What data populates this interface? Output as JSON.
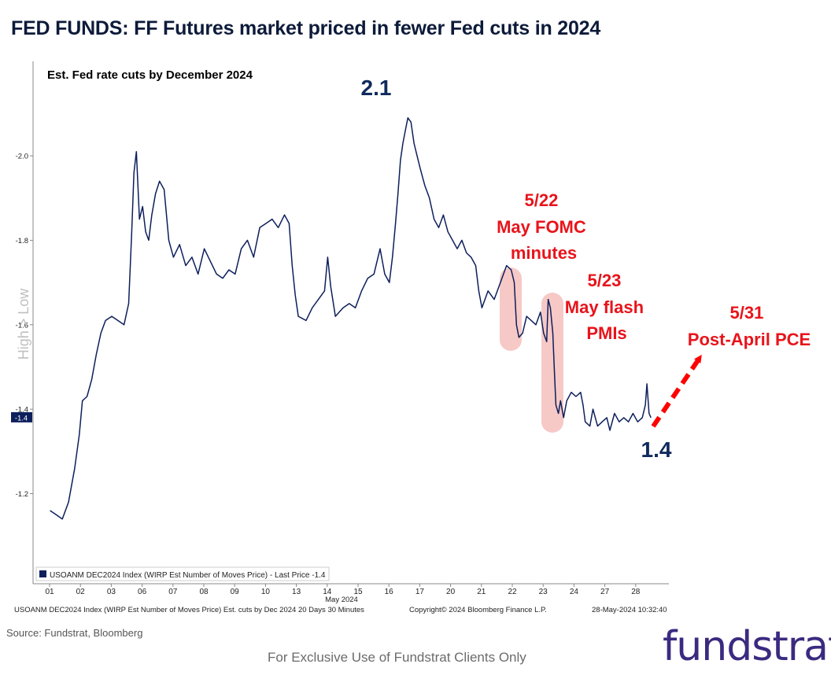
{
  "title": "FED FUNDS: FF Futures market priced in fewer Fed cuts in 2024",
  "footer": {
    "source": "Source: Fundstrat, Bloomberg",
    "exclusive": "For Exclusive Use of Fundstrat Clients Only",
    "logo_text": "fundstrat"
  },
  "chart_data": {
    "type": "line",
    "subtitle": "Est. Fed rate cuts by December 2024",
    "ylabel": "High > Low",
    "y_inverted": true,
    "ylim": [
      1.05,
      2.22
    ],
    "y_ticks": [
      "-2.0",
      "-1.8",
      "-1.6",
      "-1.4",
      "-1.2"
    ],
    "y_tick_values": [
      2.0,
      1.8,
      1.6,
      1.4,
      1.2
    ],
    "last_price_tag": "-1.4",
    "last_price_value": 1.38,
    "x_categories": [
      "01",
      "02",
      "03",
      "06",
      "07",
      "08",
      "09",
      "10",
      "13",
      "14",
      "15",
      "16",
      "17",
      "20",
      "21",
      "22",
      "23",
      "24",
      "27",
      "28"
    ],
    "x_month_label": "May 2024",
    "legend": "USOANM DEC2024 Index (WIRP Est Number of Moves Price) - Last Price -1.4",
    "bottom_left_note": "USOANM DEC2024 Index (WIRP Est Number of Moves Price) Est. cuts by Dec 2024 20 Days 30 Minutes",
    "copyright": "Copyright© 2024 Bloomberg Finance L.P.",
    "timestamp": "28-May-2024 10:32:40",
    "series": [
      {
        "name": "Est. Fed rate cuts by December 2024",
        "color": "#0d1f5c",
        "points": [
          [
            0.0,
            1.16
          ],
          [
            0.2,
            1.15
          ],
          [
            0.4,
            1.14
          ],
          [
            0.6,
            1.18
          ],
          [
            0.8,
            1.26
          ],
          [
            0.95,
            1.34
          ],
          [
            1.05,
            1.42
          ],
          [
            1.2,
            1.43
          ],
          [
            1.35,
            1.47
          ],
          [
            1.5,
            1.53
          ],
          [
            1.65,
            1.58
          ],
          [
            1.8,
            1.61
          ],
          [
            2.0,
            1.62
          ],
          [
            2.2,
            1.61
          ],
          [
            2.4,
            1.6
          ],
          [
            2.55,
            1.65
          ],
          [
            2.65,
            1.82
          ],
          [
            2.72,
            1.96
          ],
          [
            2.8,
            2.01
          ],
          [
            2.9,
            1.85
          ],
          [
            3.0,
            1.88
          ],
          [
            3.1,
            1.82
          ],
          [
            3.2,
            1.8
          ],
          [
            3.3,
            1.86
          ],
          [
            3.42,
            1.91
          ],
          [
            3.55,
            1.94
          ],
          [
            3.7,
            1.92
          ],
          [
            3.85,
            1.8
          ],
          [
            4.0,
            1.76
          ],
          [
            4.2,
            1.79
          ],
          [
            4.4,
            1.74
          ],
          [
            4.6,
            1.76
          ],
          [
            4.8,
            1.72
          ],
          [
            5.0,
            1.78
          ],
          [
            5.2,
            1.75
          ],
          [
            5.4,
            1.72
          ],
          [
            5.6,
            1.71
          ],
          [
            5.8,
            1.73
          ],
          [
            6.0,
            1.72
          ],
          [
            6.2,
            1.78
          ],
          [
            6.4,
            1.8
          ],
          [
            6.6,
            1.76
          ],
          [
            6.8,
            1.83
          ],
          [
            7.0,
            1.84
          ],
          [
            7.2,
            1.85
          ],
          [
            7.4,
            1.83
          ],
          [
            7.6,
            1.86
          ],
          [
            7.75,
            1.84
          ],
          [
            7.85,
            1.74
          ],
          [
            7.95,
            1.67
          ],
          [
            8.05,
            1.62
          ],
          [
            8.3,
            1.61
          ],
          [
            8.5,
            1.64
          ],
          [
            8.7,
            1.66
          ],
          [
            8.9,
            1.68
          ],
          [
            9.0,
            1.76
          ],
          [
            9.1,
            1.69
          ],
          [
            9.25,
            1.62
          ],
          [
            9.5,
            1.64
          ],
          [
            9.7,
            1.65
          ],
          [
            9.9,
            1.64
          ],
          [
            10.1,
            1.68
          ],
          [
            10.3,
            1.71
          ],
          [
            10.5,
            1.72
          ],
          [
            10.7,
            1.78
          ],
          [
            10.85,
            1.72
          ],
          [
            11.0,
            1.7
          ],
          [
            11.1,
            1.76
          ],
          [
            11.2,
            1.84
          ],
          [
            11.28,
            1.91
          ],
          [
            11.36,
            1.99
          ],
          [
            11.44,
            2.03
          ],
          [
            11.52,
            2.06
          ],
          [
            11.6,
            2.09
          ],
          [
            11.7,
            2.08
          ],
          [
            11.8,
            2.03
          ],
          [
            11.9,
            2.0
          ],
          [
            12.0,
            1.97
          ],
          [
            12.15,
            1.93
          ],
          [
            12.3,
            1.9
          ],
          [
            12.45,
            1.85
          ],
          [
            12.6,
            1.83
          ],
          [
            12.75,
            1.86
          ],
          [
            12.9,
            1.82
          ],
          [
            13.05,
            1.8
          ],
          [
            13.2,
            1.78
          ],
          [
            13.35,
            1.8
          ],
          [
            13.5,
            1.77
          ],
          [
            13.65,
            1.76
          ],
          [
            13.8,
            1.74
          ],
          [
            13.9,
            1.68
          ],
          [
            14.0,
            1.64
          ],
          [
            14.2,
            1.68
          ],
          [
            14.4,
            1.66
          ],
          [
            14.6,
            1.7
          ],
          [
            14.8,
            1.74
          ],
          [
            14.95,
            1.73
          ],
          [
            15.05,
            1.7
          ],
          [
            15.12,
            1.6
          ],
          [
            15.2,
            1.57
          ],
          [
            15.32,
            1.58
          ],
          [
            15.45,
            1.62
          ],
          [
            15.6,
            1.61
          ],
          [
            15.75,
            1.6
          ],
          [
            15.9,
            1.63
          ],
          [
            16.0,
            1.58
          ],
          [
            16.1,
            1.56
          ],
          [
            16.15,
            1.66
          ],
          [
            16.22,
            1.64
          ],
          [
            16.3,
            1.58
          ],
          [
            16.35,
            1.49
          ],
          [
            16.4,
            1.41
          ],
          [
            16.48,
            1.39
          ],
          [
            16.55,
            1.42
          ],
          [
            16.65,
            1.38
          ],
          [
            16.75,
            1.42
          ],
          [
            16.9,
            1.44
          ],
          [
            17.05,
            1.43
          ],
          [
            17.2,
            1.44
          ],
          [
            17.28,
            1.41
          ],
          [
            17.35,
            1.37
          ],
          [
            17.5,
            1.36
          ],
          [
            17.6,
            1.4
          ],
          [
            17.75,
            1.36
          ],
          [
            17.9,
            1.37
          ],
          [
            18.05,
            1.38
          ],
          [
            18.15,
            1.35
          ],
          [
            18.3,
            1.39
          ],
          [
            18.45,
            1.37
          ],
          [
            18.6,
            1.38
          ],
          [
            18.75,
            1.37
          ],
          [
            18.9,
            1.39
          ],
          [
            19.05,
            1.37
          ],
          [
            19.2,
            1.38
          ],
          [
            19.3,
            1.41
          ],
          [
            19.35,
            1.46
          ],
          [
            19.42,
            1.39
          ],
          [
            19.48,
            1.38
          ]
        ]
      }
    ],
    "annotations": [
      {
        "id": "peak",
        "text": "2.1"
      },
      {
        "id": "last",
        "text": "1.4"
      },
      {
        "id": "fomc",
        "lines": [
          "5/22",
          "May FOMC",
          "minutes"
        ]
      },
      {
        "id": "pmi",
        "lines": [
          "5/23",
          "May flash",
          "PMIs"
        ]
      },
      {
        "id": "pce",
        "lines": [
          "5/31",
          "Post-April PCE"
        ]
      }
    ]
  }
}
